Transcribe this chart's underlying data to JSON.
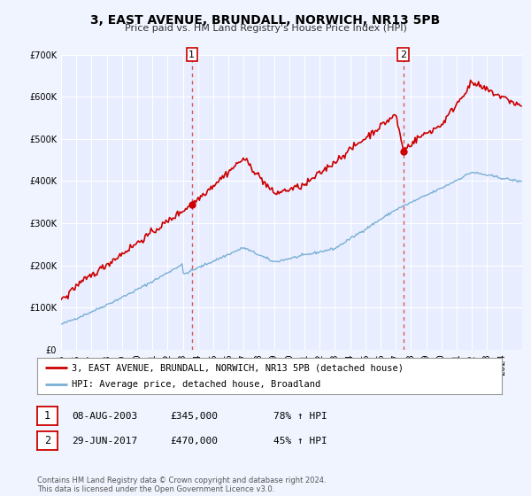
{
  "title": "3, EAST AVENUE, BRUNDALL, NORWICH, NR13 5PB",
  "subtitle": "Price paid vs. HM Land Registry's House Price Index (HPI)",
  "bg_color": "#f0f4ff",
  "plot_bg_color": "#e8eeff",
  "grid_color": "#ffffff",
  "ylim": [
    0,
    700000
  ],
  "yticks": [
    0,
    100000,
    200000,
    300000,
    400000,
    500000,
    600000,
    700000
  ],
  "ytick_labels": [
    "£0",
    "£100K",
    "£200K",
    "£300K",
    "£400K",
    "£500K",
    "£600K",
    "£700K"
  ],
  "xlim_start": 1995.0,
  "xlim_end": 2025.3,
  "sale1_x": 2003.6,
  "sale1_y": 345000,
  "sale2_x": 2017.49,
  "sale2_y": 470000,
  "red_line_color": "#cc0000",
  "blue_line_color": "#7aafd4",
  "marker_color": "#cc0000",
  "dashed_line_color": "#dd4444",
  "legend_label_red": "3, EAST AVENUE, BRUNDALL, NORWICH, NR13 5PB (detached house)",
  "legend_label_blue": "HPI: Average price, detached house, Broadland",
  "sale1_date": "08-AUG-2003",
  "sale1_price": "£345,000",
  "sale1_hpi": "78% ↑ HPI",
  "sale2_date": "29-JUN-2017",
  "sale2_price": "£470,000",
  "sale2_hpi": "45% ↑ HPI",
  "footer_text": "Contains HM Land Registry data © Crown copyright and database right 2024.\nThis data is licensed under the Open Government Licence v3.0.",
  "box_color": "#cc0000",
  "title_fontsize": 10,
  "subtitle_fontsize": 8,
  "tick_fontsize": 7,
  "legend_fontsize": 7.5,
  "table_fontsize": 8,
  "footer_fontsize": 6
}
